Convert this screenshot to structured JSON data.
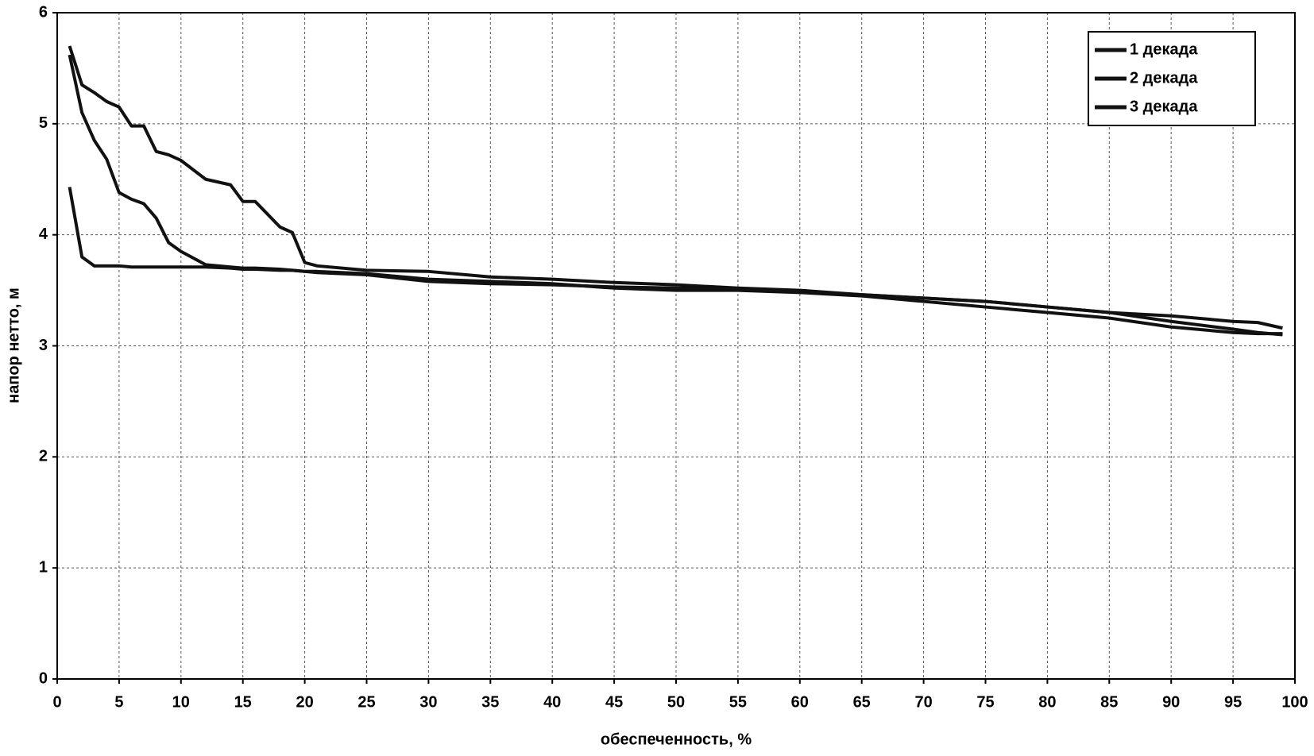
{
  "chart_data": {
    "type": "line",
    "x_label": "обеспеченность, %",
    "y_label": "напор нетто, м",
    "x": [
      1,
      2,
      3,
      4,
      5,
      6,
      7,
      8,
      9,
      10,
      12,
      14,
      15,
      16,
      18,
      19,
      20,
      21,
      25,
      30,
      35,
      40,
      45,
      50,
      55,
      60,
      65,
      70,
      75,
      80,
      85,
      90,
      95,
      97,
      99
    ],
    "series": [
      {
        "name": "1 декада",
        "color": "#111111",
        "values": [
          5.7,
          5.35,
          5.28,
          5.2,
          5.15,
          4.98,
          4.98,
          4.75,
          4.72,
          4.67,
          4.5,
          4.45,
          4.3,
          4.3,
          4.07,
          4.02,
          3.75,
          3.72,
          3.68,
          3.67,
          3.62,
          3.6,
          3.57,
          3.55,
          3.52,
          3.5,
          3.46,
          3.43,
          3.4,
          3.35,
          3.3,
          3.22,
          3.15,
          3.12,
          3.1
        ]
      },
      {
        "name": "2 декада",
        "color": "#111111",
        "values": [
          5.62,
          5.1,
          4.85,
          4.68,
          4.38,
          4.32,
          4.28,
          4.15,
          3.93,
          3.85,
          3.73,
          3.71,
          3.7,
          3.7,
          3.69,
          3.68,
          3.67,
          3.67,
          3.65,
          3.6,
          3.58,
          3.56,
          3.52,
          3.5,
          3.5,
          3.48,
          3.45,
          3.4,
          3.35,
          3.3,
          3.25,
          3.17,
          3.12,
          3.11,
          3.11
        ]
      },
      {
        "name": "3 декада",
        "color": "#111111",
        "values": [
          4.43,
          3.8,
          3.72,
          3.72,
          3.72,
          3.71,
          3.71,
          3.71,
          3.71,
          3.71,
          3.71,
          3.7,
          3.69,
          3.69,
          3.68,
          3.68,
          3.67,
          3.66,
          3.64,
          3.58,
          3.56,
          3.55,
          3.53,
          3.52,
          3.51,
          3.49,
          3.46,
          3.43,
          3.4,
          3.35,
          3.3,
          3.27,
          3.22,
          3.21,
          3.16
        ]
      }
    ],
    "xlim": [
      0,
      100
    ],
    "xticks": [
      0,
      5,
      10,
      15,
      20,
      25,
      30,
      35,
      40,
      45,
      50,
      55,
      60,
      65,
      70,
      75,
      80,
      85,
      90,
      95,
      100
    ],
    "ylim": [
      0,
      6
    ],
    "yticks": [
      0,
      1,
      2,
      3,
      4,
      5,
      6
    ],
    "grid": true,
    "legend": "top-right"
  }
}
